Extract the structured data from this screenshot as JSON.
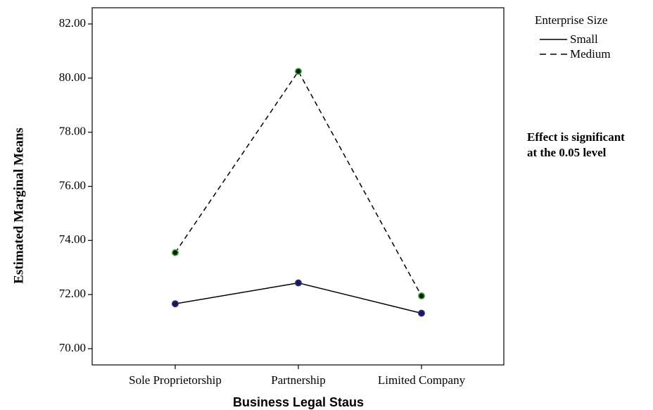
{
  "chart_data": {
    "type": "line",
    "xlabel": "Business Legal Staus",
    "ylabel": "Estimated Marginal Means",
    "categories": [
      "Sole Proprietorship",
      "Partnership",
      "Limited Company"
    ],
    "ylim": [
      69.4,
      82.6
    ],
    "yticks": [
      70,
      72,
      74,
      76,
      78,
      80,
      82
    ],
    "ytick_labels": [
      "70.00",
      "72.00",
      "74.00",
      "76.00",
      "78.00",
      "80.00",
      "82.00"
    ],
    "grid": false,
    "legend": {
      "title": "Enterprise Size",
      "placement": "top-right, outside plot"
    },
    "series": [
      {
        "name": "Small",
        "values": [
          71.66,
          72.43,
          71.31
        ],
        "line_style": "solid",
        "color": "#000000",
        "marker_fill": "#1a1a4a",
        "marker_edge": "#2e2e8a"
      },
      {
        "name": "Medium",
        "values": [
          73.55,
          80.25,
          71.95
        ],
        "line_style": "dashed",
        "color": "#000000",
        "marker_fill": "#0a1a0a",
        "marker_edge": "#3cb43c"
      }
    ],
    "annotation": [
      "Effect is significant",
      "at the 0.05 level"
    ]
  }
}
